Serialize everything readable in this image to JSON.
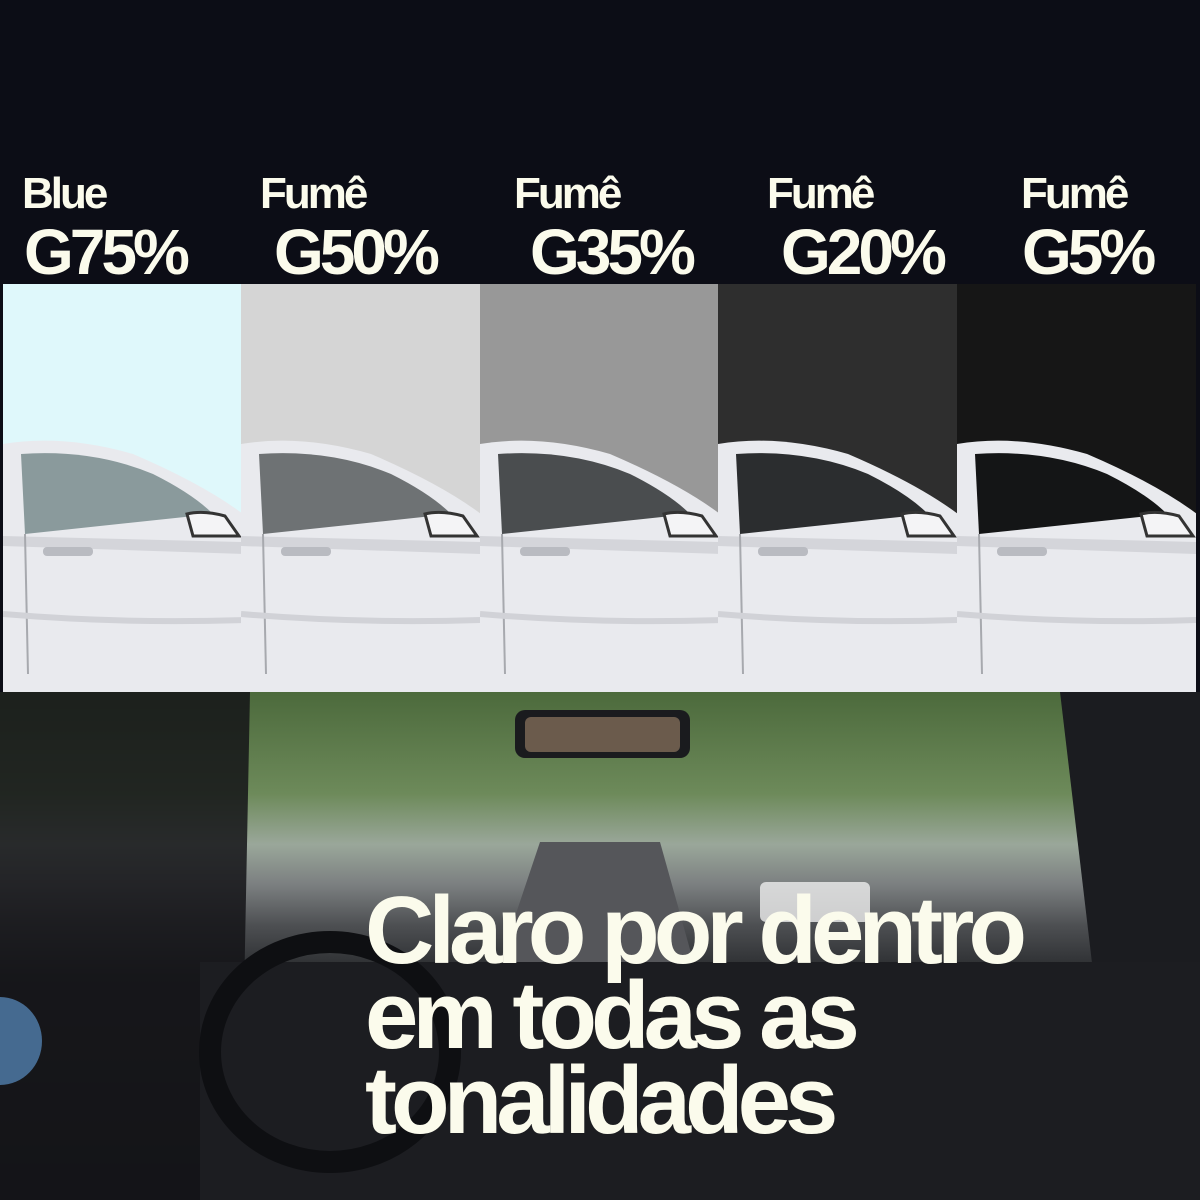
{
  "tints": [
    {
      "type": "Blue",
      "grade": "G75%",
      "color": "#dff8fb"
    },
    {
      "type": "Fumê",
      "grade": "G50%",
      "color": "#d5d5d5"
    },
    {
      "type": "Fumê",
      "grade": "G35%",
      "color": "#989898"
    },
    {
      "type": "Fumê",
      "grade": "G20%",
      "color": "#2e2e2e"
    },
    {
      "type": "Fumê",
      "grade": "G5%",
      "color": "#161616"
    }
  ],
  "headline": {
    "line1": "Claro por dentro",
    "line2": "em todas as",
    "line3": "tonalidades"
  },
  "colors": {
    "background": "#0c0d16",
    "text": "#fbfbec",
    "accent_circle": "#456a90"
  }
}
